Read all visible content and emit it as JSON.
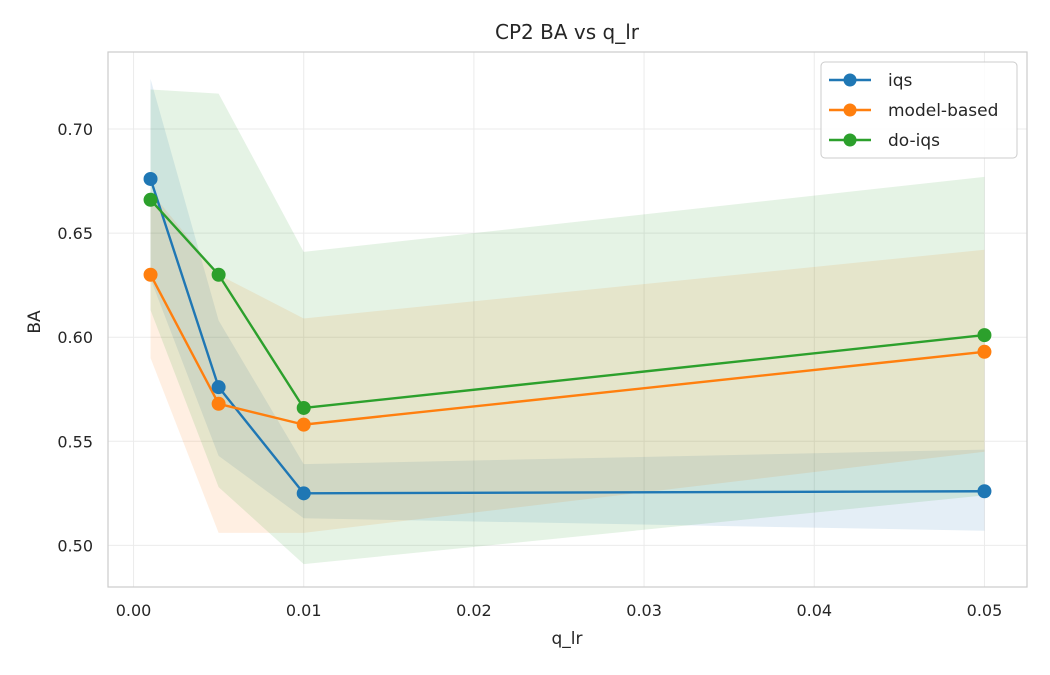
{
  "chart_data": {
    "type": "line",
    "title": "CP2 BA vs q_lr",
    "xlabel": "q_lr",
    "ylabel": "BA",
    "x": [
      0.001,
      0.005,
      0.01,
      0.05
    ],
    "xlim": [
      -0.0015,
      0.0525
    ],
    "ylim": [
      0.48,
      0.737
    ],
    "xticks": [
      0.0,
      0.01,
      0.02,
      0.03,
      0.04,
      0.05
    ],
    "xtick_labels": [
      "0.00",
      "0.01",
      "0.02",
      "0.03",
      "0.04",
      "0.05"
    ],
    "yticks": [
      0.5,
      0.55,
      0.6,
      0.65,
      0.7
    ],
    "ytick_labels": [
      "0.50",
      "0.55",
      "0.60",
      "0.65",
      "0.70"
    ],
    "grid": true,
    "legend_position": "top-right",
    "series": [
      {
        "name": "iqs",
        "color": "#1f77b4",
        "values": [
          0.676,
          0.576,
          0.525,
          0.526
        ],
        "lower": [
          0.628,
          0.543,
          0.513,
          0.507
        ],
        "upper": [
          0.724,
          0.608,
          0.539,
          0.546
        ]
      },
      {
        "name": "model-based",
        "color": "#ff7f0e",
        "values": [
          0.63,
          0.568,
          0.558,
          0.593
        ],
        "lower": [
          0.59,
          0.506,
          0.506,
          0.545
        ],
        "upper": [
          0.67,
          0.63,
          0.609,
          0.642
        ]
      },
      {
        "name": "do-iqs",
        "color": "#2ca02c",
        "values": [
          0.666,
          0.63,
          0.566,
          0.601
        ],
        "lower": [
          0.613,
          0.528,
          0.491,
          0.524
        ],
        "upper": [
          0.719,
          0.717,
          0.641,
          0.677
        ]
      }
    ]
  }
}
